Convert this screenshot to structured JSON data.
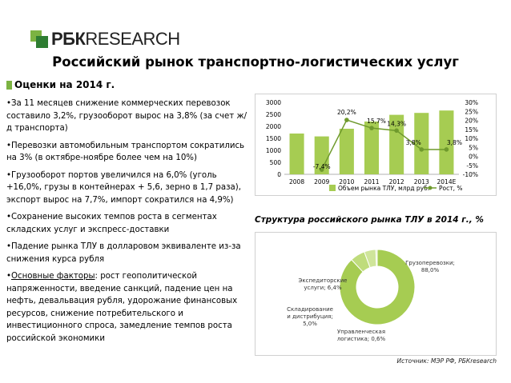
{
  "logo": {
    "brand": "РБК",
    "suffix": "RESEARCH"
  },
  "title": "Российский рынок транспортно-логистических услуг",
  "subhead": "Оценки на 2014 г.",
  "bullets": [
    "•За 11 месяцев снижение коммерческих перевозок составило 3,2%, грузооборот вырос на 3,8% (за счет ж/д транспорта)",
    "•Перевозки автомобильным транспортом сократились на 3% (в октябре-ноябре более чем на 10%)",
    "•Грузооборот портов увеличился на 6,0% (уголь +16,0%, грузы в контейнерах + 5,6, зерно в 1,7 раза), экспорт вырос на 7,7%, импорт сократился на 4,9%)",
    "•Сохранение высоких темпов роста в сегментах складских услуг и экспресс-доставки",
    "•Падение рынка ТЛУ в долларовом эквиваленте из-за снижения курса рубля"
  ],
  "factors": {
    "prefix": "•",
    "label": "Основные факторы",
    "text": ": рост геополитической напряженности, введение санкций, падение цен на нефть, девальвация рубля, удорожание финансовых ресурсов, снижение потребительского и инвестиционного спроса, замедление темпов роста российской экономики"
  },
  "pie_title": "Структура российского рынка ТЛУ в 2014 г., %",
  "source": "Источник: МЭР РФ, РБКresearch",
  "colors": {
    "green_light": "#a6cc52",
    "green_dark": "#6f9a2d",
    "text": "#000000"
  },
  "chart_data": [
    {
      "type": "bar",
      "categories": [
        "2008",
        "2009",
        "2010",
        "2011",
        "2012",
        "2013",
        "2014E"
      ],
      "series": [
        {
          "name": "Объем рынка ТЛУ, млрд руб.",
          "type": "bar",
          "values": [
            1700,
            1580,
            1900,
            2200,
            2480,
            2560,
            2660
          ],
          "axis": "left"
        },
        {
          "name": "Рост, %",
          "type": "line",
          "values": [
            null,
            -7.4,
            20.2,
            15.7,
            14.3,
            3.8,
            3.8
          ],
          "labels": [
            "",
            "-7,4%",
            "20,2%",
            "15,7%",
            "14,3%",
            "3,8%",
            "3,8%"
          ],
          "axis": "right"
        }
      ],
      "yticks_left": [
        "0",
        "500",
        "1000",
        "1500",
        "2000",
        "2500",
        "3000"
      ],
      "yticks_right": [
        "-10%",
        "-5%",
        "0%",
        "5%",
        "10%",
        "15%",
        "20%",
        "25%",
        "30%"
      ],
      "ylim_left": [
        0,
        3000
      ],
      "ylim_right": [
        -10,
        30
      ],
      "legend": "bottom",
      "grid": false
    },
    {
      "type": "pie",
      "categories": [
        "Грузоперевозки; 88,0%",
        "Экспедиторские услуги; 6,4%",
        "Складирование и дистрибуция; 5,0%",
        "Управленческая логистика; 0,6%"
      ],
      "values": [
        88.0,
        6.4,
        5.0,
        0.6
      ]
    }
  ]
}
